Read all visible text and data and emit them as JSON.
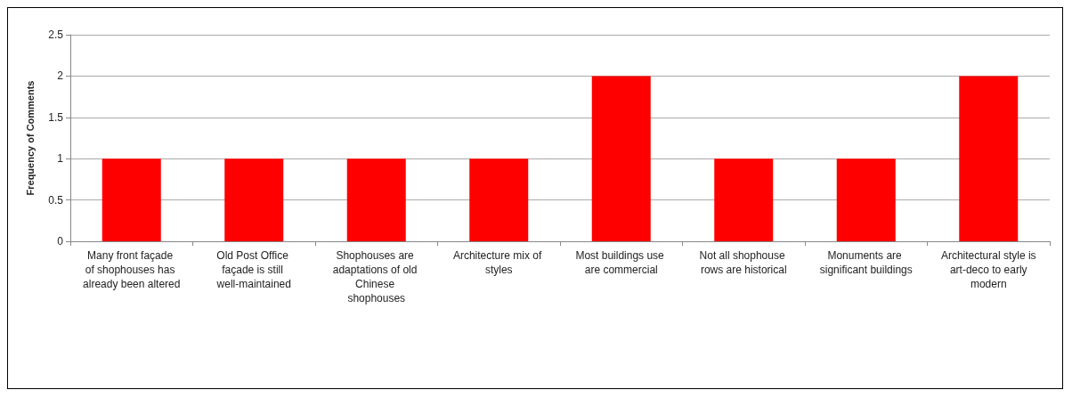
{
  "chart_data": {
    "type": "bar",
    "ylabel": "Frequency of Comments",
    "categories": [
      "Many front façade of shophouses has already been altered",
      "Old Post Office façade is still well-maintained",
      "Shophouses are adaptations of old Chinese shophouses",
      "Architecture mix of styles",
      "Most buildings use are commercial",
      "Not all shophouse rows are historical",
      "Monuments are significant buildings",
      "Architectural style is art-deco to early modern"
    ],
    "values": [
      1,
      1,
      1,
      1,
      2,
      1,
      1,
      2
    ],
    "color": "#ff0000",
    "ylim": [
      0,
      2.5
    ],
    "yticks": [
      0,
      0.5,
      1,
      1.5,
      2,
      2.5
    ],
    "grid": "y"
  }
}
